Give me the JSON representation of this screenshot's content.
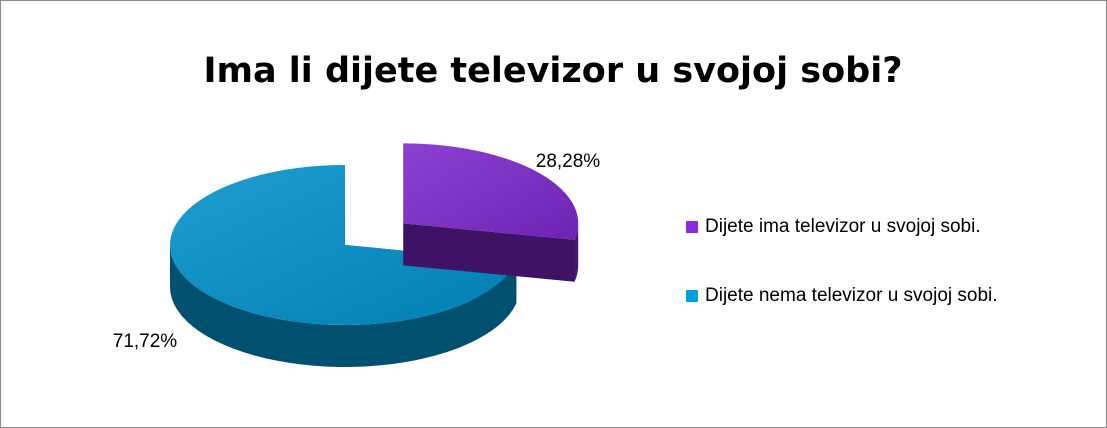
{
  "chart_data": {
    "type": "pie",
    "title": "Ima li dijete televizor u svojoj sobi?",
    "categories": [
      "Dijete ima televizor u svojoj sobi.",
      "Dijete nema televizor u svojoj sobi."
    ],
    "values": [
      28.28,
      71.72
    ],
    "value_labels": [
      "28,28%",
      "71,72%"
    ],
    "colors": [
      "#8a2be2",
      "#00a0e0"
    ],
    "legend": "right"
  }
}
